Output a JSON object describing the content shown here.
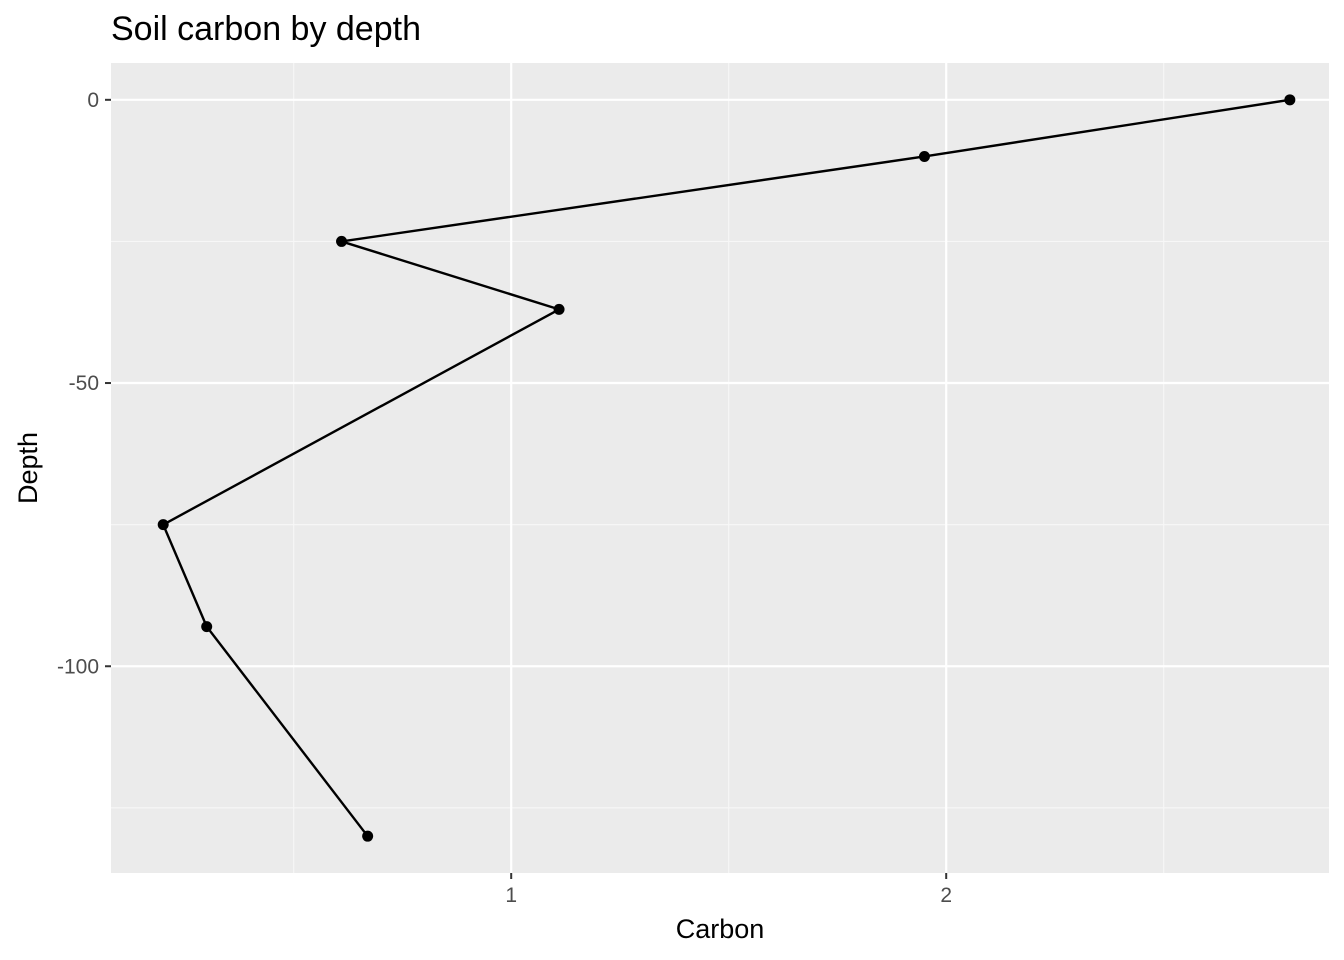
{
  "chart_data": {
    "type": "line",
    "title": "Soil carbon by depth",
    "xlabel": "Carbon",
    "ylabel": "Depth",
    "xlim": [
      0.08,
      2.88
    ],
    "ylim": [
      -136.5,
      6.5
    ],
    "x_ticks": [
      1,
      2
    ],
    "x_tick_labels": [
      "1",
      "2"
    ],
    "x_minor_ticks": [
      0.5,
      1.5,
      2.5
    ],
    "y_ticks": [
      0,
      -50,
      -100
    ],
    "y_tick_labels": [
      "0",
      "-50",
      "-100"
    ],
    "y_minor_ticks": [
      -25,
      -75,
      -125
    ],
    "grid": true,
    "points_shown": true,
    "series": [
      {
        "x": [
          2.79,
          1.95,
          0.61,
          1.11,
          0.2,
          0.3,
          0.67
        ],
        "y": [
          0,
          -10,
          -25,
          -37,
          -75,
          -93,
          -130
        ]
      }
    ],
    "colors": {
      "panel_background": "#ebebeb",
      "grid_major": "#ffffff",
      "grid_minor": "#f7f7f7",
      "line": "#000000",
      "point": "#000000",
      "tick_label": "#4d4d4d",
      "tick_mark": "#333333"
    }
  }
}
